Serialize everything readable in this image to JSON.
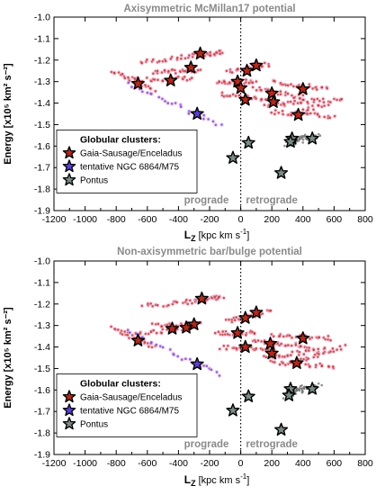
{
  "chart_data": [
    {
      "type": "scatter",
      "title": "Axisymmetric McMillan17 potential",
      "xlabel_main": "L",
      "xlabel_sub": "Z",
      "xlabel_unit": " [kpc km s",
      "xlabel_unit_sup": "-1",
      "xlabel_close": "]",
      "ylabel": "Energy [x10⁵ km² s⁻²]",
      "xlim": [
        -1200,
        800
      ],
      "ylim": [
        -1.9,
        -1.0
      ],
      "xticks": [
        -1200,
        -1000,
        -800,
        -600,
        -400,
        -200,
        0,
        200,
        400,
        600,
        800
      ],
      "yticks": [
        -1.9,
        -1.8,
        -1.7,
        -1.6,
        -1.5,
        -1.4,
        -1.3,
        -1.2,
        -1.1,
        -1.0
      ],
      "grid": false,
      "legend_position": "lower-left",
      "annotations": [
        "prograde",
        "retrograde"
      ],
      "legend": {
        "title": "Globular clusters:",
        "entries": [
          {
            "label": "Gaia-Sausage/Enceladus",
            "color": "#b12a1e"
          },
          {
            "label": "tentative NGC 6864/M75",
            "color": "#5b3fd6"
          },
          {
            "label": "Pontus",
            "color": "#7a8a84"
          }
        ]
      },
      "series": [
        {
          "name": "Gaia-Sausage/Enceladus",
          "color": "#b12a1e",
          "points": [
            [
              -260,
              -1.17
            ],
            [
              -320,
              -1.235
            ],
            [
              -660,
              -1.31
            ],
            [
              -450,
              -1.295
            ],
            [
              -20,
              -1.3
            ],
            [
              40,
              -1.25
            ],
            [
              100,
              -1.225
            ],
            [
              0,
              -1.33
            ],
            [
              30,
              -1.385
            ],
            [
              200,
              -1.355
            ],
            [
              210,
              -1.395
            ],
            [
              400,
              -1.335
            ],
            [
              370,
              -1.455
            ]
          ]
        },
        {
          "name": "tentative NGC 6864/M75",
          "color": "#5b3fd6",
          "points": [
            [
              -280,
              -1.45
            ]
          ]
        },
        {
          "name": "Pontus",
          "color": "#7a8a84",
          "points": [
            [
              50,
              -1.585
            ],
            [
              -50,
              -1.655
            ],
            [
              330,
              -1.565
            ],
            [
              460,
              -1.565
            ],
            [
              320,
              -1.58
            ],
            [
              260,
              -1.725
            ]
          ]
        }
      ],
      "clouds": [
        {
          "color": "#b12a1e",
          "from": [
            -640,
            -1.21
          ],
          "to": [
            -220,
            -1.175
          ]
        },
        {
          "color": "#b12a1e",
          "from": [
            -820,
            -1.25
          ],
          "to": [
            -560,
            -1.34
          ]
        },
        {
          "color": "#b12a1e",
          "from": [
            -700,
            -1.29
          ],
          "to": [
            -300,
            -1.285
          ]
        },
        {
          "color": "#b12a1e",
          "from": [
            -560,
            -1.26
          ],
          "to": [
            -260,
            -1.245
          ]
        },
        {
          "color": "#b12a1e",
          "from": [
            -300,
            -1.175
          ],
          "to": [
            -120,
            -1.165
          ]
        },
        {
          "color": "#b12a1e",
          "from": [
            -80,
            -1.255
          ],
          "to": [
            180,
            -1.22
          ]
        },
        {
          "color": "#b12a1e",
          "from": [
            -150,
            -1.3
          ],
          "to": [
            100,
            -1.3
          ]
        },
        {
          "color": "#b12a1e",
          "from": [
            -120,
            -1.36
          ],
          "to": [
            200,
            -1.385
          ]
        },
        {
          "color": "#b12a1e",
          "from": [
            80,
            -1.33
          ],
          "to": [
            420,
            -1.375
          ]
        },
        {
          "color": "#b12a1e",
          "from": [
            160,
            -1.41
          ],
          "to": [
            520,
            -1.385
          ]
        },
        {
          "color": "#b12a1e",
          "from": [
            200,
            -1.3
          ],
          "to": [
            560,
            -1.335
          ]
        },
        {
          "color": "#b12a1e",
          "from": [
            300,
            -1.46
          ],
          "to": [
            660,
            -1.375
          ]
        },
        {
          "color": "#b12a1e",
          "from": [
            200,
            -1.44
          ],
          "to": [
            600,
            -1.465
          ]
        },
        {
          "color": "#5b3fd6",
          "from": [
            -730,
            -1.31
          ],
          "to": [
            -130,
            -1.5
          ]
        },
        {
          "color": "#6b6b6b",
          "from": [
            290,
            -1.6
          ],
          "to": [
            510,
            -1.545
          ]
        },
        {
          "color": "#6b6b6b",
          "from": [
            300,
            -1.585
          ],
          "to": [
            420,
            -1.555
          ]
        }
      ]
    },
    {
      "type": "scatter",
      "title": "Non-axisymmetric bar/bulge potential",
      "xlabel_main": "L",
      "xlabel_sub": "Z",
      "xlabel_unit": " [kpc km s",
      "xlabel_unit_sup": "-1",
      "xlabel_close": "]",
      "ylabel": "Energy [x10⁵ km² s⁻²]",
      "xlim": [
        -1200,
        800
      ],
      "ylim": [
        -1.9,
        -1.0
      ],
      "xticks": [
        -1200,
        -1000,
        -800,
        -600,
        -400,
        -200,
        0,
        200,
        400,
        600,
        800
      ],
      "yticks": [
        -1.9,
        -1.8,
        -1.7,
        -1.6,
        -1.5,
        -1.4,
        -1.3,
        -1.2,
        -1.1,
        -1.0
      ],
      "grid": false,
      "legend_position": "lower-left",
      "annotations": [
        "prograde",
        "retrograde"
      ],
      "legend": {
        "title": "Globular clusters:",
        "entries": [
          {
            "label": "Gaia-Sausage/Enceladus",
            "color": "#b12a1e"
          },
          {
            "label": "tentative NGC 6864/M75",
            "color": "#5b3fd6"
          },
          {
            "label": "Pontus",
            "color": "#7a8a84"
          }
        ]
      },
      "series": [
        {
          "name": "Gaia-Sausage/Enceladus",
          "color": "#b12a1e",
          "points": [
            [
              -250,
              -1.175
            ],
            [
              -300,
              -1.295
            ],
            [
              -660,
              -1.37
            ],
            [
              -440,
              -1.315
            ],
            [
              -350,
              -1.31
            ],
            [
              -20,
              -1.335
            ],
            [
              30,
              -1.265
            ],
            [
              100,
              -1.24
            ],
            [
              30,
              -1.4
            ],
            [
              190,
              -1.385
            ],
            [
              200,
              -1.43
            ],
            [
              400,
              -1.36
            ],
            [
              360,
              -1.475
            ]
          ]
        },
        {
          "name": "tentative NGC 6864/M75",
          "color": "#5b3fd6",
          "points": [
            [
              -280,
              -1.48
            ]
          ]
        },
        {
          "name": "Pontus",
          "color": "#7a8a84",
          "points": [
            [
              50,
              -1.63
            ],
            [
              -50,
              -1.695
            ],
            [
              320,
              -1.595
            ],
            [
              460,
              -1.595
            ],
            [
              310,
              -1.625
            ],
            [
              260,
              -1.785
            ]
          ]
        }
      ],
      "clouds": [
        {
          "color": "#b12a1e",
          "from": [
            -620,
            -1.21
          ],
          "to": [
            -200,
            -1.18
          ]
        },
        {
          "color": "#b12a1e",
          "from": [
            -820,
            -1.31
          ],
          "to": [
            -560,
            -1.4
          ]
        },
        {
          "color": "#b12a1e",
          "from": [
            -700,
            -1.34
          ],
          "to": [
            -300,
            -1.31
          ]
        },
        {
          "color": "#b12a1e",
          "from": [
            -560,
            -1.3
          ],
          "to": [
            -260,
            -1.29
          ]
        },
        {
          "color": "#b12a1e",
          "from": [
            -300,
            -1.18
          ],
          "to": [
            -120,
            -1.17
          ]
        },
        {
          "color": "#b12a1e",
          "from": [
            -80,
            -1.28
          ],
          "to": [
            180,
            -1.235
          ]
        },
        {
          "color": "#b12a1e",
          "from": [
            -150,
            -1.335
          ],
          "to": [
            100,
            -1.335
          ]
        },
        {
          "color": "#b12a1e",
          "from": [
            -120,
            -1.4
          ],
          "to": [
            220,
            -1.41
          ]
        },
        {
          "color": "#b12a1e",
          "from": [
            80,
            -1.37
          ],
          "to": [
            440,
            -1.4
          ]
        },
        {
          "color": "#b12a1e",
          "from": [
            160,
            -1.45
          ],
          "to": [
            540,
            -1.41
          ]
        },
        {
          "color": "#b12a1e",
          "from": [
            200,
            -1.34
          ],
          "to": [
            580,
            -1.36
          ]
        },
        {
          "color": "#b12a1e",
          "from": [
            300,
            -1.48
          ],
          "to": [
            660,
            -1.4
          ]
        },
        {
          "color": "#b12a1e",
          "from": [
            200,
            -1.47
          ],
          "to": [
            600,
            -1.49
          ]
        },
        {
          "color": "#5b3fd6",
          "from": [
            -730,
            -1.33
          ],
          "to": [
            -130,
            -1.53
          ]
        },
        {
          "color": "#6b6b6b",
          "from": [
            280,
            -1.63
          ],
          "to": [
            510,
            -1.575
          ]
        },
        {
          "color": "#6b6b6b",
          "from": [
            290,
            -1.61
          ],
          "to": [
            420,
            -1.585
          ]
        }
      ]
    }
  ]
}
